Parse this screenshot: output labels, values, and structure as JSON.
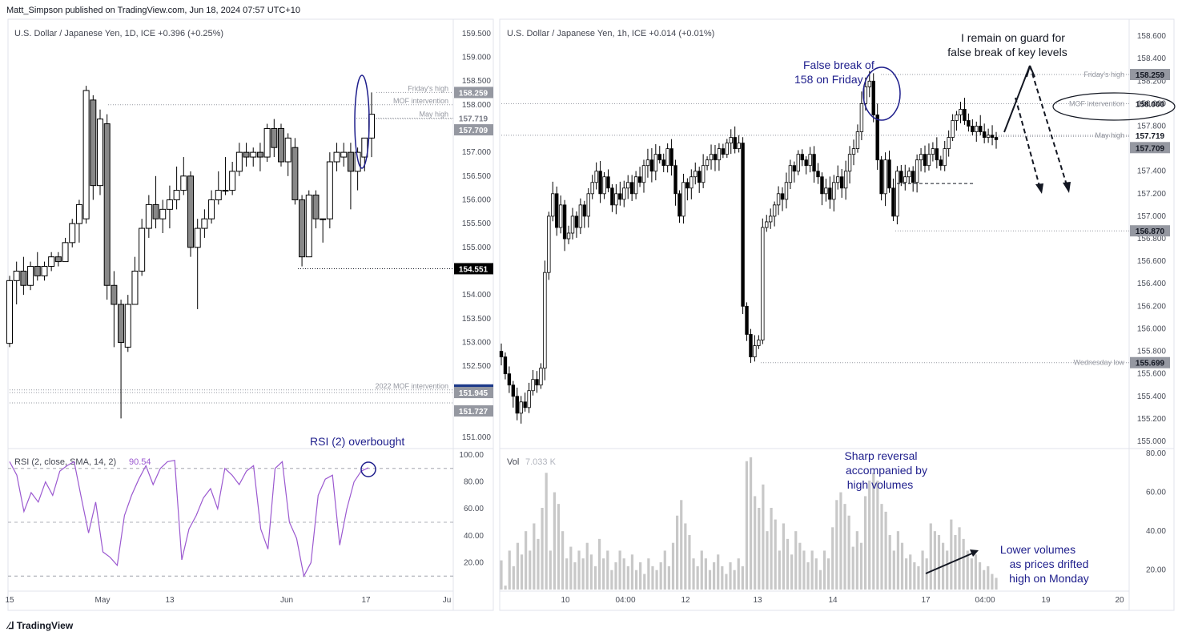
{
  "header": {
    "text": "Matt_Simpson published on TradingView.com, Jun 18, 2024 07:57 UTC+10"
  },
  "footer": {
    "brand": "TradingView",
    "logo_icon": "tradingview-logo-icon"
  },
  "colors": {
    "up": "#ffffff",
    "down": "#888888",
    "wick": "#000000",
    "rsi": "#9b59d0",
    "annotation": "#1e1e8c",
    "volume": "#c8c8c8",
    "level_blue": "#1e3a8a"
  },
  "left_panel": {
    "legend": "U.S. Dollar / Japanese Yen, 1D, ICE  +0.396 (+0.25%)",
    "y_ticks": [
      "159.500",
      "159.000",
      "158.500",
      "158.000",
      "157.500",
      "157.000",
      "156.500",
      "156.000",
      "155.500",
      "155.000",
      "154.500",
      "154.000",
      "153.500",
      "153.000",
      "152.500",
      "152.000",
      "151.500",
      "151.000"
    ],
    "x_ticks": [
      "15",
      "May",
      "13",
      "Jun",
      "17",
      "Ju"
    ],
    "lines": [
      {
        "label": "Friday's high",
        "price": "158.259"
      },
      {
        "label": "MOF intervention",
        "price": ""
      },
      {
        "label": "May high",
        "price": "157.719"
      },
      {
        "label": "",
        "price": "157.709"
      },
      {
        "label": "",
        "price": "154.551"
      },
      {
        "label": "2022 MOF intervention",
        "price": "152.000"
      },
      {
        "label": "",
        "price": "151.945"
      },
      {
        "label": "",
        "price": "151.727"
      }
    ],
    "rsi_legend": "RSI (2, close, SMA, 14, 2)",
    "rsi_value": "90.54",
    "rsi_ticks": [
      "100.00",
      "80.00",
      "60.00",
      "40.00",
      "20.00"
    ],
    "rsi_annotation": "RSI (2) overbought"
  },
  "right_panel": {
    "legend": "U.S. Dollar / Japanese Yen, 1h, ICE  +0.014 (+0.01%)",
    "y_ticks": [
      "158.600",
      "158.400",
      "158.200",
      "158.000",
      "157.800",
      "157.600",
      "157.400",
      "157.200",
      "157.000",
      "156.800",
      "156.600",
      "156.400",
      "156.200",
      "156.000",
      "155.800",
      "155.600",
      "155.400",
      "155.200",
      "155.000"
    ],
    "x_ticks": [
      "10",
      "04:00",
      "12",
      "13",
      "14",
      "17",
      "04:00",
      "19",
      "20"
    ],
    "lines": [
      {
        "label": "Friday's high",
        "price": "158.259"
      },
      {
        "label": "MOF intervention",
        "price": "158.000"
      },
      {
        "label": "May high",
        "price": "157.719"
      },
      {
        "label": "",
        "price": "157.709"
      },
      {
        "label": "",
        "price": "156.870"
      },
      {
        "label": "Wednesday low",
        "price": "155.699"
      }
    ],
    "vol_legend": "Vol",
    "vol_value": "7.033 K",
    "vol_ticks": [
      "80.00",
      "60.00",
      "40.00",
      "20.00"
    ],
    "annotations": {
      "false_break": [
        "False break of",
        "158 on Friday"
      ],
      "on_guard": [
        "I remain on guard for",
        "false break of key levels"
      ],
      "sharp_reversal": [
        "Sharp reversal",
        "accompanied by",
        "high volumes"
      ],
      "lower_volumes": [
        "Lower volumes",
        "as prices drifted",
        "high on Monday"
      ]
    }
  },
  "chart_data": [
    {
      "type": "candlestick",
      "title": "U.S. Dollar / Japanese Yen, 1D, ICE",
      "ylim": [
        150.8,
        159.8
      ],
      "candles": [
        {
          "o": 152.98,
          "h": 154.4,
          "l": 152.9,
          "c": 154.3
        },
        {
          "o": 154.3,
          "h": 154.7,
          "l": 153.8,
          "c": 154.5
        },
        {
          "o": 154.5,
          "h": 154.8,
          "l": 154.0,
          "c": 154.2
        },
        {
          "o": 154.2,
          "h": 154.7,
          "l": 154.1,
          "c": 154.6
        },
        {
          "o": 154.6,
          "h": 154.9,
          "l": 154.3,
          "c": 154.4
        },
        {
          "o": 154.4,
          "h": 154.7,
          "l": 154.3,
          "c": 154.6
        },
        {
          "o": 154.6,
          "h": 154.9,
          "l": 154.5,
          "c": 154.8
        },
        {
          "o": 154.8,
          "h": 154.9,
          "l": 154.6,
          "c": 154.7
        },
        {
          "o": 154.7,
          "h": 155.2,
          "l": 154.7,
          "c": 155.1
        },
        {
          "o": 155.1,
          "h": 155.6,
          "l": 155.0,
          "c": 155.5
        },
        {
          "o": 155.5,
          "h": 156.0,
          "l": 155.1,
          "c": 155.9
        },
        {
          "o": 155.6,
          "h": 158.4,
          "l": 155.5,
          "c": 158.3
        },
        {
          "o": 158.1,
          "h": 158.2,
          "l": 156.0,
          "c": 156.3
        },
        {
          "o": 156.3,
          "h": 157.9,
          "l": 156.1,
          "c": 157.7
        },
        {
          "o": 157.6,
          "h": 157.8,
          "l": 153.9,
          "c": 154.2
        },
        {
          "o": 154.2,
          "h": 154.5,
          "l": 152.9,
          "c": 153.8
        },
        {
          "o": 153.8,
          "h": 153.9,
          "l": 151.4,
          "c": 153.0
        },
        {
          "o": 152.9,
          "h": 154.0,
          "l": 152.8,
          "c": 153.8
        },
        {
          "o": 153.8,
          "h": 154.8,
          "l": 153.8,
          "c": 154.5
        },
        {
          "o": 154.5,
          "h": 155.6,
          "l": 154.4,
          "c": 155.4
        },
        {
          "o": 155.4,
          "h": 156.1,
          "l": 155.2,
          "c": 155.9
        },
        {
          "o": 155.9,
          "h": 156.5,
          "l": 155.4,
          "c": 155.6
        },
        {
          "o": 155.6,
          "h": 156.0,
          "l": 155.3,
          "c": 155.8
        },
        {
          "o": 155.8,
          "h": 156.3,
          "l": 155.4,
          "c": 156.0
        },
        {
          "o": 156.0,
          "h": 156.7,
          "l": 155.8,
          "c": 156.2
        },
        {
          "o": 156.2,
          "h": 156.9,
          "l": 156.1,
          "c": 156.5
        },
        {
          "o": 156.5,
          "h": 156.6,
          "l": 154.8,
          "c": 155.0
        },
        {
          "o": 155.0,
          "h": 155.6,
          "l": 153.7,
          "c": 155.4
        },
        {
          "o": 155.4,
          "h": 155.8,
          "l": 155.2,
          "c": 155.6
        },
        {
          "o": 155.6,
          "h": 156.2,
          "l": 155.5,
          "c": 156.0
        },
        {
          "o": 156.0,
          "h": 156.6,
          "l": 155.9,
          "c": 156.2
        },
        {
          "o": 156.2,
          "h": 156.9,
          "l": 156.1,
          "c": 156.2
        },
        {
          "o": 156.2,
          "h": 156.8,
          "l": 156.1,
          "c": 156.6
        },
        {
          "o": 156.6,
          "h": 157.2,
          "l": 156.5,
          "c": 157.0
        },
        {
          "o": 157.0,
          "h": 157.2,
          "l": 156.7,
          "c": 156.9
        },
        {
          "o": 156.9,
          "h": 157.1,
          "l": 156.7,
          "c": 157.0
        },
        {
          "o": 157.0,
          "h": 157.2,
          "l": 156.6,
          "c": 156.9
        },
        {
          "o": 156.9,
          "h": 157.6,
          "l": 156.8,
          "c": 157.5
        },
        {
          "o": 157.5,
          "h": 157.7,
          "l": 156.9,
          "c": 157.1
        },
        {
          "o": 157.5,
          "h": 157.6,
          "l": 156.7,
          "c": 156.8
        },
        {
          "o": 156.8,
          "h": 157.4,
          "l": 156.5,
          "c": 157.3
        },
        {
          "o": 157.1,
          "h": 157.3,
          "l": 155.9,
          "c": 156.0
        },
        {
          "o": 156.0,
          "h": 156.1,
          "l": 154.6,
          "c": 154.8
        },
        {
          "o": 154.8,
          "h": 156.2,
          "l": 154.8,
          "c": 156.1
        },
        {
          "o": 156.1,
          "h": 156.2,
          "l": 155.4,
          "c": 155.6
        },
        {
          "o": 155.6,
          "h": 155.6,
          "l": 155.1,
          "c": 155.6
        },
        {
          "o": 155.6,
          "h": 157.0,
          "l": 155.4,
          "c": 156.8
        },
        {
          "o": 156.8,
          "h": 157.2,
          "l": 156.6,
          "c": 157.0
        },
        {
          "o": 156.9,
          "h": 157.2,
          "l": 156.7,
          "c": 157.0
        },
        {
          "o": 157.0,
          "h": 157.2,
          "l": 155.8,
          "c": 156.6
        },
        {
          "o": 156.6,
          "h": 157.1,
          "l": 156.2,
          "c": 157.0
        },
        {
          "o": 156.9,
          "h": 157.3,
          "l": 156.6,
          "c": 157.3
        },
        {
          "o": 157.3,
          "h": 158.26,
          "l": 156.9,
          "c": 157.8
        }
      ],
      "levels": [
        {
          "label": "Friday's high",
          "value": 158.259
        },
        {
          "label": "MOF intervention",
          "value": 158.0
        },
        {
          "label": "May high",
          "value": 157.719
        },
        {
          "label": "",
          "value": 157.709
        },
        {
          "label": "",
          "value": 154.551
        },
        {
          "label": "2022 MOF intervention",
          "value": 152.0
        },
        {
          "label": "",
          "value": 151.945
        },
        {
          "label": "",
          "value": 151.727
        }
      ],
      "rsi": {
        "ylim": [
          0,
          100
        ],
        "bands": [
          90,
          50,
          10
        ],
        "values": [
          95,
          85,
          58,
          72,
          65,
          80,
          70,
          88,
          92,
          95,
          68,
          42,
          65,
          28,
          24,
          18,
          55,
          70,
          82,
          92,
          78,
          90,
          95,
          96,
          22,
          45,
          55,
          68,
          75,
          60,
          90,
          85,
          78,
          88,
          92,
          45,
          30,
          90,
          95,
          50,
          38,
          10,
          20,
          70,
          82,
          85,
          33,
          60,
          80,
          88,
          90.54
        ]
      }
    },
    {
      "type": "candlestick",
      "title": "U.S. Dollar / Japanese Yen, 1h, ICE",
      "ylim": [
        154.95,
        158.75
      ],
      "close_path": [
        155.75,
        155.6,
        155.5,
        155.4,
        155.25,
        155.35,
        155.3,
        155.45,
        155.55,
        155.5,
        155.65,
        156.5,
        157.0,
        157.2,
        156.9,
        157.1,
        156.8,
        156.85,
        157.0,
        156.9,
        157.1,
        157.0,
        157.2,
        157.3,
        157.4,
        157.2,
        157.35,
        157.25,
        157.1,
        157.2,
        157.15,
        157.25,
        157.3,
        157.2,
        157.35,
        157.3,
        157.45,
        157.5,
        157.4,
        157.55,
        157.5,
        157.45,
        157.6,
        157.45,
        157.2,
        157.0,
        157.3,
        157.25,
        157.35,
        157.4,
        157.3,
        157.45,
        157.5,
        157.55,
        157.5,
        157.6,
        157.55,
        157.65,
        157.7,
        157.6,
        157.65,
        156.2,
        155.95,
        155.75,
        155.85,
        155.9,
        156.9,
        156.95,
        157.0,
        157.1,
        157.2,
        157.15,
        157.3,
        157.45,
        157.4,
        157.55,
        157.5,
        157.45,
        157.55,
        157.4,
        157.35,
        157.2,
        157.25,
        157.15,
        157.3,
        157.35,
        157.25,
        157.4,
        157.55,
        157.6,
        157.75,
        158.0,
        158.15,
        158.2,
        157.9,
        157.5,
        157.2,
        157.5,
        157.25,
        157.0,
        157.4,
        157.3,
        157.35,
        157.4,
        157.3,
        157.5,
        157.55,
        157.45,
        157.55,
        157.6,
        157.5,
        157.45,
        157.6,
        157.7,
        157.85,
        157.9,
        157.95,
        157.85,
        157.8,
        157.75,
        157.8,
        157.75,
        157.7,
        157.72,
        157.7,
        157.68
      ],
      "levels": [
        {
          "label": "Friday's high",
          "value": 158.259
        },
        {
          "label": "MOF intervention",
          "value": 158.0
        },
        {
          "label": "May high",
          "value": 157.719
        },
        {
          "label": "",
          "value": 157.709
        },
        {
          "label": "",
          "value": 156.87
        },
        {
          "label": "Wednesday low",
          "value": 155.699
        }
      ],
      "volume": {
        "ylim": [
          10,
          80
        ],
        "values": [
          25,
          12,
          30,
          22,
          34,
          28,
          40,
          30,
          44,
          36,
          52,
          70,
          30,
          60,
          54,
          40,
          26,
          32,
          24,
          30,
          26,
          34,
          28,
          22,
          36,
          26,
          30,
          20,
          24,
          30,
          26,
          22,
          28,
          20,
          24,
          18,
          26,
          22,
          20,
          24,
          30,
          22,
          34,
          48,
          56,
          44,
          38,
          26,
          22,
          30,
          26,
          20,
          24,
          28,
          22,
          18,
          24,
          20,
          26,
          22,
          76,
          78,
          58,
          52,
          64,
          40,
          52,
          46,
          30,
          44,
          36,
          28,
          40,
          34,
          30,
          24,
          30,
          26,
          20,
          30,
          26,
          42,
          56,
          60,
          54,
          48,
          32,
          40,
          34,
          58,
          66,
          70,
          66,
          54,
          50,
          38,
          30,
          40,
          34,
          26,
          28,
          24,
          22,
          30,
          26,
          44,
          40,
          38,
          34,
          30,
          46,
          38,
          42,
          36,
          30,
          26,
          28,
          24,
          20,
          22,
          18,
          16
        ]
      }
    }
  ]
}
